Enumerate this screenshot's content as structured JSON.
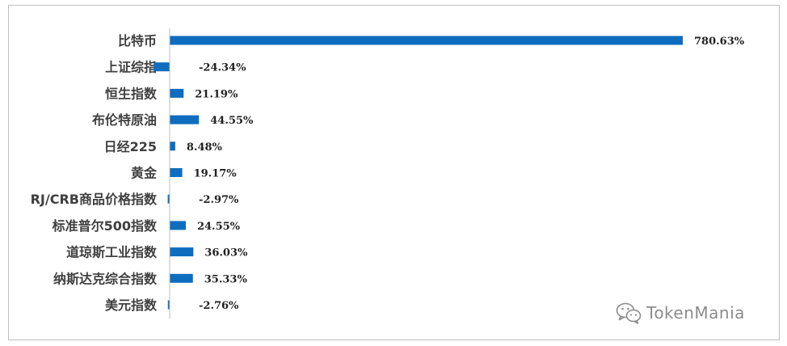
{
  "chart_data": {
    "type": "bar",
    "orientation": "horizontal",
    "categories": [
      "比特币",
      "上证综指",
      "恒生指数",
      "布伦特原油",
      "日经225",
      "黄金",
      "RJ/CRB商品价格指数",
      "标准普尔500指数",
      "道琼斯工业指数",
      "纳斯达克综合指数",
      "美元指数"
    ],
    "values": [
      780.63,
      -24.34,
      21.19,
      44.55,
      8.48,
      19.17,
      -2.97,
      24.55,
      36.03,
      35.33,
      -2.76
    ],
    "value_labels": [
      "780.63%",
      "-24.34%",
      "21.19%",
      "44.55%",
      "8.48%",
      "19.17%",
      "-2.97%",
      "24.55%",
      "36.03%",
      "35.33%",
      "-2.76%"
    ],
    "title": "",
    "xlabel": "",
    "ylabel": "",
    "unit": "%",
    "xlim": [
      -25,
      790
    ],
    "grid": false,
    "legend": "none",
    "bar_color": "#0e6dbf"
  },
  "watermark": {
    "text": "TokenMania",
    "icon": "wechat-icon"
  }
}
